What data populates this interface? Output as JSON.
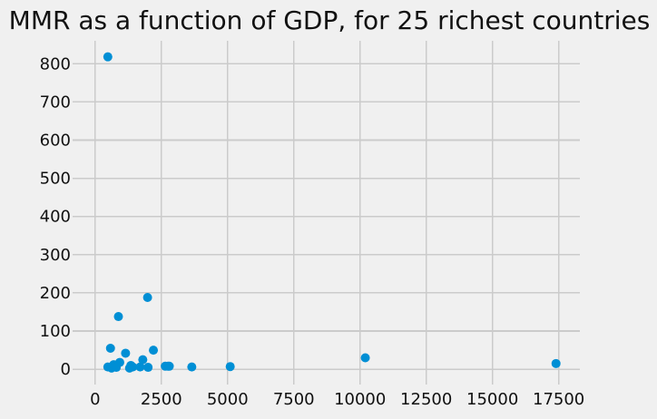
{
  "chart_data": {
    "type": "scatter",
    "title": "MMR as a function of GDP, for 25 richest countries",
    "xlabel": "",
    "ylabel": "",
    "xlim": [
      -850,
      18300
    ],
    "ylim": [
      -40,
      860
    ],
    "xticks": [
      0,
      2500,
      5000,
      7500,
      10000,
      12500,
      15000,
      17500
    ],
    "yticks": [
      0,
      100,
      200,
      300,
      400,
      500,
      600,
      700,
      800
    ],
    "grid": true,
    "legend": "none",
    "point_color": "#008fd5",
    "background_color": "#f0f0f0",
    "grid_color": "#cbcbcb",
    "x": [
      480,
      480,
      580,
      620,
      700,
      760,
      800,
      880,
      930,
      1150,
      1300,
      1350,
      1420,
      1700,
      1800,
      1980,
      2000,
      2200,
      2650,
      2750,
      2800,
      3650,
      5100,
      10200,
      17400
    ],
    "y": [
      818,
      6,
      55,
      3,
      12,
      8,
      5,
      138,
      18,
      42,
      3,
      10,
      6,
      6,
      25,
      188,
      5,
      50,
      8,
      8,
      8,
      6,
      7,
      30,
      15
    ]
  }
}
